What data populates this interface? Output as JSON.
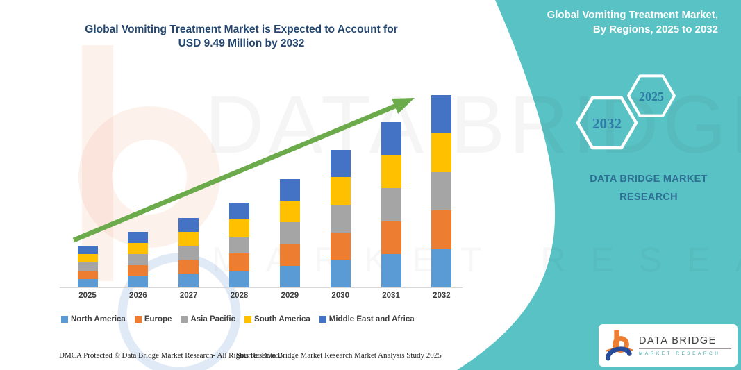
{
  "main_title": {
    "line1": "Global Vomiting Treatment Market is Expected to Account for",
    "line2": "USD 9.49 Million by 2032"
  },
  "chart_data": {
    "type": "bar",
    "stacked": true,
    "title": "Global Vomiting Treatment Market is Expected to Account for USD 9.49 Million by 2032",
    "unit": "USD Million",
    "xlabel": "",
    "ylabel": "",
    "ylim": [
      0,
      10
    ],
    "grid": false,
    "legend_position": "bottom",
    "annotation": "green upward trend arrow across bars",
    "categories": [
      "2025",
      "2026",
      "2027",
      "2028",
      "2029",
      "2030",
      "2031",
      "2032"
    ],
    "totals": [
      2.05,
      2.75,
      3.45,
      4.2,
      5.35,
      6.8,
      8.15,
      9.49
    ],
    "series": [
      {
        "name": "North America",
        "color": "#5B9BD5",
        "values": [
          0.41,
          0.55,
          0.69,
          0.84,
          1.07,
          1.36,
          1.63,
          1.9
        ]
      },
      {
        "name": "Europe",
        "color": "#ED7D31",
        "values": [
          0.41,
          0.55,
          0.69,
          0.84,
          1.07,
          1.36,
          1.63,
          1.9
        ]
      },
      {
        "name": "Asia Pacific",
        "color": "#A5A5A5",
        "values": [
          0.41,
          0.55,
          0.69,
          0.84,
          1.07,
          1.36,
          1.63,
          1.9
        ]
      },
      {
        "name": "South America",
        "color": "#FFC000",
        "values": [
          0.41,
          0.55,
          0.69,
          0.84,
          1.07,
          1.36,
          1.63,
          1.9
        ]
      },
      {
        "name": "Middle East and Africa",
        "color": "#4472C4",
        "values": [
          0.41,
          0.55,
          0.69,
          0.84,
          1.07,
          1.36,
          1.63,
          1.89
        ]
      }
    ]
  },
  "side_panel": {
    "bg_color": "#58C2C4",
    "title_line1": "Global Vomiting Treatment Market,",
    "title_line2": "By Regions, 2025 to 2032",
    "hex_large_year": "2032",
    "hex_small_year": "2025",
    "brand_line1": "DATA BRIDGE MARKET",
    "brand_line2": "RESEARCH"
  },
  "logo_card": {
    "name": "DATA BRIDGE",
    "sub": "MARKET RESEARCH"
  },
  "watermark": {
    "line1": "DATA BRIDGE",
    "line2": "MARKET RESEARCH"
  },
  "footer": {
    "left": "DMCA Protected © Data Bridge Market Research-  All Rights Reserved.",
    "source": "Source: Data Bridge Market Research  Market Analysis Study 2025"
  },
  "colors": {
    "arrow_green": "#6BAB4B",
    "title_navy": "#25476F",
    "panel_text_blue": "#2E6E94"
  }
}
